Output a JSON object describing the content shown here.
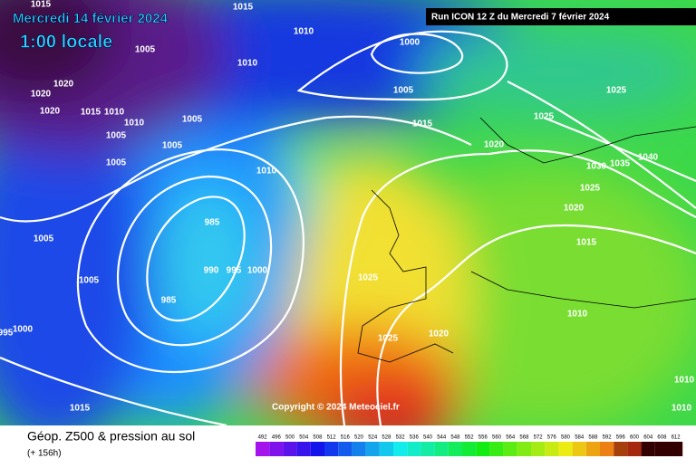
{
  "header": {
    "date": "Mercredi 14 février 2024",
    "time": "1:00 locale",
    "run": "Run ICON 12 Z du Mercredi 7 février 2024"
  },
  "map": {
    "isobar_labels": [
      "1015",
      "1015",
      "1010",
      "1005",
      "1010",
      "1000",
      "1005",
      "1020",
      "1020",
      "1020",
      "1015",
      "1010",
      "1010",
      "1005",
      "1005",
      "1005",
      "1005",
      "1015",
      "1025",
      "1025",
      "1020",
      "1030",
      "1035",
      "1040",
      "1025",
      "1020",
      "1010",
      "985",
      "1005",
      "1015",
      "990",
      "995",
      "1000",
      "1005",
      "1025",
      "985",
      "1010",
      "1000",
      "995",
      "1025",
      "1020",
      "1015",
      "1010",
      "1010"
    ],
    "copyright": "Copyright © 2024 Meteociel.fr"
  },
  "footer": {
    "title": "Géop. Z500 & pression au sol",
    "lead": "(+ 156h)",
    "scale": [
      "492",
      "496",
      "500",
      "504",
      "508",
      "512",
      "516",
      "520",
      "524",
      "528",
      "532",
      "536",
      "540",
      "544",
      "548",
      "552",
      "556",
      "560",
      "564",
      "568",
      "572",
      "576",
      "580",
      "584",
      "588",
      "592",
      "596",
      "600",
      "604",
      "608",
      "612"
    ]
  }
}
